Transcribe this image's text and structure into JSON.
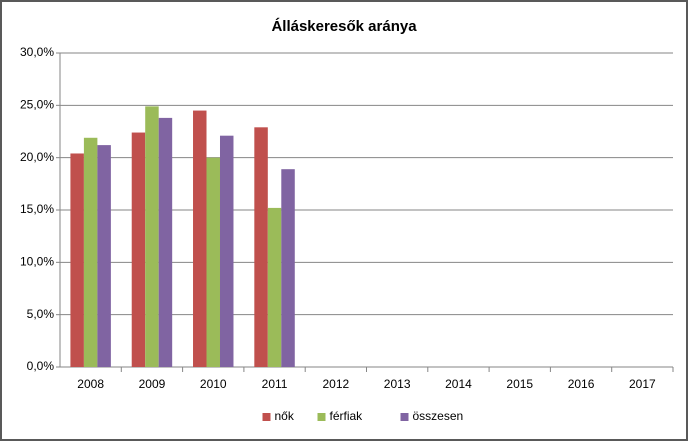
{
  "chart_data": {
    "type": "bar",
    "title": "Álláskeresők aránya",
    "categories": [
      "2008",
      "2009",
      "2010",
      "2011",
      "2012",
      "2013",
      "2014",
      "2015",
      "2016",
      "2017"
    ],
    "series": [
      {
        "name": "nők",
        "color": "#c0504d",
        "values": [
          20.4,
          22.4,
          24.5,
          22.9,
          null,
          null,
          null,
          null,
          null,
          null
        ]
      },
      {
        "name": "férfiak",
        "color": "#9bbb59",
        "values": [
          21.9,
          24.9,
          20.0,
          15.2,
          null,
          null,
          null,
          null,
          null,
          null
        ]
      },
      {
        "name": "összesen",
        "color": "#8064a2",
        "values": [
          21.2,
          23.8,
          22.1,
          18.9,
          null,
          null,
          null,
          null,
          null,
          null
        ]
      }
    ],
    "ylim": [
      0,
      30
    ],
    "yticks": [
      {
        "value": 0,
        "label": "0,0%"
      },
      {
        "value": 5,
        "label": "5,0%"
      },
      {
        "value": 10,
        "label": "10,0%"
      },
      {
        "value": 15,
        "label": "15,0%"
      },
      {
        "value": 20,
        "label": "20,0%"
      },
      {
        "value": 25,
        "label": "25,0%"
      },
      {
        "value": 30,
        "label": "30,0%"
      }
    ],
    "grid": true,
    "legend": "bottom"
  }
}
